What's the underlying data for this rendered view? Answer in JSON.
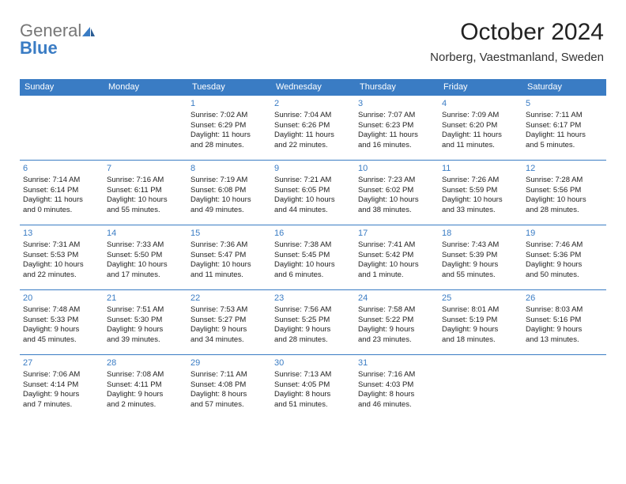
{
  "brand": {
    "part1": "General",
    "part2": "Blue"
  },
  "title": "October 2024",
  "location": "Norberg, Vaestmanland, Sweden",
  "colors": {
    "header_bg": "#3a7cc4",
    "header_fg": "#ffffff",
    "daynum": "#3a7cc4",
    "text": "#222222",
    "rule": "#3a7cc4",
    "page_bg": "#ffffff"
  },
  "day_labels": [
    "Sunday",
    "Monday",
    "Tuesday",
    "Wednesday",
    "Thursday",
    "Friday",
    "Saturday"
  ],
  "weeks": [
    [
      null,
      null,
      {
        "n": "1",
        "sr": "Sunrise: 7:02 AM",
        "ss": "Sunset: 6:29 PM",
        "dl1": "Daylight: 11 hours",
        "dl2": "and 28 minutes."
      },
      {
        "n": "2",
        "sr": "Sunrise: 7:04 AM",
        "ss": "Sunset: 6:26 PM",
        "dl1": "Daylight: 11 hours",
        "dl2": "and 22 minutes."
      },
      {
        "n": "3",
        "sr": "Sunrise: 7:07 AM",
        "ss": "Sunset: 6:23 PM",
        "dl1": "Daylight: 11 hours",
        "dl2": "and 16 minutes."
      },
      {
        "n": "4",
        "sr": "Sunrise: 7:09 AM",
        "ss": "Sunset: 6:20 PM",
        "dl1": "Daylight: 11 hours",
        "dl2": "and 11 minutes."
      },
      {
        "n": "5",
        "sr": "Sunrise: 7:11 AM",
        "ss": "Sunset: 6:17 PM",
        "dl1": "Daylight: 11 hours",
        "dl2": "and 5 minutes."
      }
    ],
    [
      {
        "n": "6",
        "sr": "Sunrise: 7:14 AM",
        "ss": "Sunset: 6:14 PM",
        "dl1": "Daylight: 11 hours",
        "dl2": "and 0 minutes."
      },
      {
        "n": "7",
        "sr": "Sunrise: 7:16 AM",
        "ss": "Sunset: 6:11 PM",
        "dl1": "Daylight: 10 hours",
        "dl2": "and 55 minutes."
      },
      {
        "n": "8",
        "sr": "Sunrise: 7:19 AM",
        "ss": "Sunset: 6:08 PM",
        "dl1": "Daylight: 10 hours",
        "dl2": "and 49 minutes."
      },
      {
        "n": "9",
        "sr": "Sunrise: 7:21 AM",
        "ss": "Sunset: 6:05 PM",
        "dl1": "Daylight: 10 hours",
        "dl2": "and 44 minutes."
      },
      {
        "n": "10",
        "sr": "Sunrise: 7:23 AM",
        "ss": "Sunset: 6:02 PM",
        "dl1": "Daylight: 10 hours",
        "dl2": "and 38 minutes."
      },
      {
        "n": "11",
        "sr": "Sunrise: 7:26 AM",
        "ss": "Sunset: 5:59 PM",
        "dl1": "Daylight: 10 hours",
        "dl2": "and 33 minutes."
      },
      {
        "n": "12",
        "sr": "Sunrise: 7:28 AM",
        "ss": "Sunset: 5:56 PM",
        "dl1": "Daylight: 10 hours",
        "dl2": "and 28 minutes."
      }
    ],
    [
      {
        "n": "13",
        "sr": "Sunrise: 7:31 AM",
        "ss": "Sunset: 5:53 PM",
        "dl1": "Daylight: 10 hours",
        "dl2": "and 22 minutes."
      },
      {
        "n": "14",
        "sr": "Sunrise: 7:33 AM",
        "ss": "Sunset: 5:50 PM",
        "dl1": "Daylight: 10 hours",
        "dl2": "and 17 minutes."
      },
      {
        "n": "15",
        "sr": "Sunrise: 7:36 AM",
        "ss": "Sunset: 5:47 PM",
        "dl1": "Daylight: 10 hours",
        "dl2": "and 11 minutes."
      },
      {
        "n": "16",
        "sr": "Sunrise: 7:38 AM",
        "ss": "Sunset: 5:45 PM",
        "dl1": "Daylight: 10 hours",
        "dl2": "and 6 minutes."
      },
      {
        "n": "17",
        "sr": "Sunrise: 7:41 AM",
        "ss": "Sunset: 5:42 PM",
        "dl1": "Daylight: 10 hours",
        "dl2": "and 1 minute."
      },
      {
        "n": "18",
        "sr": "Sunrise: 7:43 AM",
        "ss": "Sunset: 5:39 PM",
        "dl1": "Daylight: 9 hours",
        "dl2": "and 55 minutes."
      },
      {
        "n": "19",
        "sr": "Sunrise: 7:46 AM",
        "ss": "Sunset: 5:36 PM",
        "dl1": "Daylight: 9 hours",
        "dl2": "and 50 minutes."
      }
    ],
    [
      {
        "n": "20",
        "sr": "Sunrise: 7:48 AM",
        "ss": "Sunset: 5:33 PM",
        "dl1": "Daylight: 9 hours",
        "dl2": "and 45 minutes."
      },
      {
        "n": "21",
        "sr": "Sunrise: 7:51 AM",
        "ss": "Sunset: 5:30 PM",
        "dl1": "Daylight: 9 hours",
        "dl2": "and 39 minutes."
      },
      {
        "n": "22",
        "sr": "Sunrise: 7:53 AM",
        "ss": "Sunset: 5:27 PM",
        "dl1": "Daylight: 9 hours",
        "dl2": "and 34 minutes."
      },
      {
        "n": "23",
        "sr": "Sunrise: 7:56 AM",
        "ss": "Sunset: 5:25 PM",
        "dl1": "Daylight: 9 hours",
        "dl2": "and 28 minutes."
      },
      {
        "n": "24",
        "sr": "Sunrise: 7:58 AM",
        "ss": "Sunset: 5:22 PM",
        "dl1": "Daylight: 9 hours",
        "dl2": "and 23 minutes."
      },
      {
        "n": "25",
        "sr": "Sunrise: 8:01 AM",
        "ss": "Sunset: 5:19 PM",
        "dl1": "Daylight: 9 hours",
        "dl2": "and 18 minutes."
      },
      {
        "n": "26",
        "sr": "Sunrise: 8:03 AM",
        "ss": "Sunset: 5:16 PM",
        "dl1": "Daylight: 9 hours",
        "dl2": "and 13 minutes."
      }
    ],
    [
      {
        "n": "27",
        "sr": "Sunrise: 7:06 AM",
        "ss": "Sunset: 4:14 PM",
        "dl1": "Daylight: 9 hours",
        "dl2": "and 7 minutes."
      },
      {
        "n": "28",
        "sr": "Sunrise: 7:08 AM",
        "ss": "Sunset: 4:11 PM",
        "dl1": "Daylight: 9 hours",
        "dl2": "and 2 minutes."
      },
      {
        "n": "29",
        "sr": "Sunrise: 7:11 AM",
        "ss": "Sunset: 4:08 PM",
        "dl1": "Daylight: 8 hours",
        "dl2": "and 57 minutes."
      },
      {
        "n": "30",
        "sr": "Sunrise: 7:13 AM",
        "ss": "Sunset: 4:05 PM",
        "dl1": "Daylight: 8 hours",
        "dl2": "and 51 minutes."
      },
      {
        "n": "31",
        "sr": "Sunrise: 7:16 AM",
        "ss": "Sunset: 4:03 PM",
        "dl1": "Daylight: 8 hours",
        "dl2": "and 46 minutes."
      },
      null,
      null
    ]
  ]
}
